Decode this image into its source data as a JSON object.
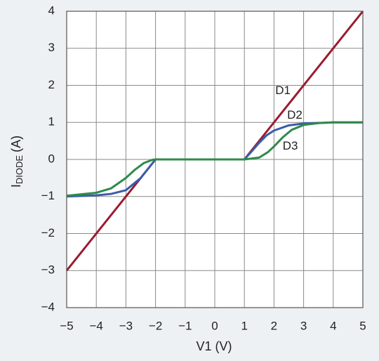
{
  "chart_data": {
    "type": "line",
    "x_label": "V1 (V)",
    "y_label": "I",
    "y_label_sub": "DIODE",
    "y_label_unit": "(A)",
    "xlim": [
      -5,
      5
    ],
    "xticks": [
      {
        "value": -5,
        "label": "−5"
      },
      {
        "value": -4,
        "label": "−4"
      },
      {
        "value": -3,
        "label": "−3"
      },
      {
        "value": -2,
        "label": "−2"
      },
      {
        "value": -1,
        "label": "−1"
      },
      0,
      1,
      2,
      3,
      4,
      5
    ],
    "ylim": [
      -4,
      4
    ],
    "yticks": [
      {
        "value": -4,
        "label": "−4"
      },
      {
        "value": -3,
        "label": "−3"
      },
      {
        "value": -2,
        "label": "−2"
      },
      {
        "value": -1,
        "label": "−1"
      },
      0,
      1,
      2,
      3,
      4
    ],
    "grid": true,
    "series": [
      {
        "name": "D1",
        "color": "#9b1b30",
        "x": [
          -5,
          -2,
          1,
          5
        ],
        "values": [
          -3,
          0,
          0,
          4
        ]
      },
      {
        "name": "D2",
        "color": "#3a5da8",
        "x": [
          -5,
          -4,
          -3.5,
          -3,
          -2.5,
          -2.2,
          -2,
          1,
          1.25,
          1.5,
          1.75,
          2,
          2.5,
          3,
          4,
          5
        ],
        "values": [
          -1,
          -0.97,
          -0.93,
          -0.83,
          -0.5,
          -0.2,
          0,
          0,
          0.22,
          0.45,
          0.65,
          0.78,
          0.92,
          0.97,
          1,
          1
        ]
      },
      {
        "name": "D3",
        "color": "#2f8a4a",
        "x": [
          -5,
          -4,
          -3.5,
          -3,
          -2.7,
          -2.4,
          -2.1,
          -2,
          1,
          1.5,
          1.8,
          2,
          2.3,
          2.6,
          3,
          3.5,
          4,
          5
        ],
        "values": [
          -0.98,
          -0.9,
          -0.78,
          -0.5,
          -0.28,
          -0.1,
          -0.01,
          0,
          0,
          0.05,
          0.2,
          0.35,
          0.6,
          0.8,
          0.93,
          0.98,
          1,
          1
        ]
      }
    ]
  }
}
